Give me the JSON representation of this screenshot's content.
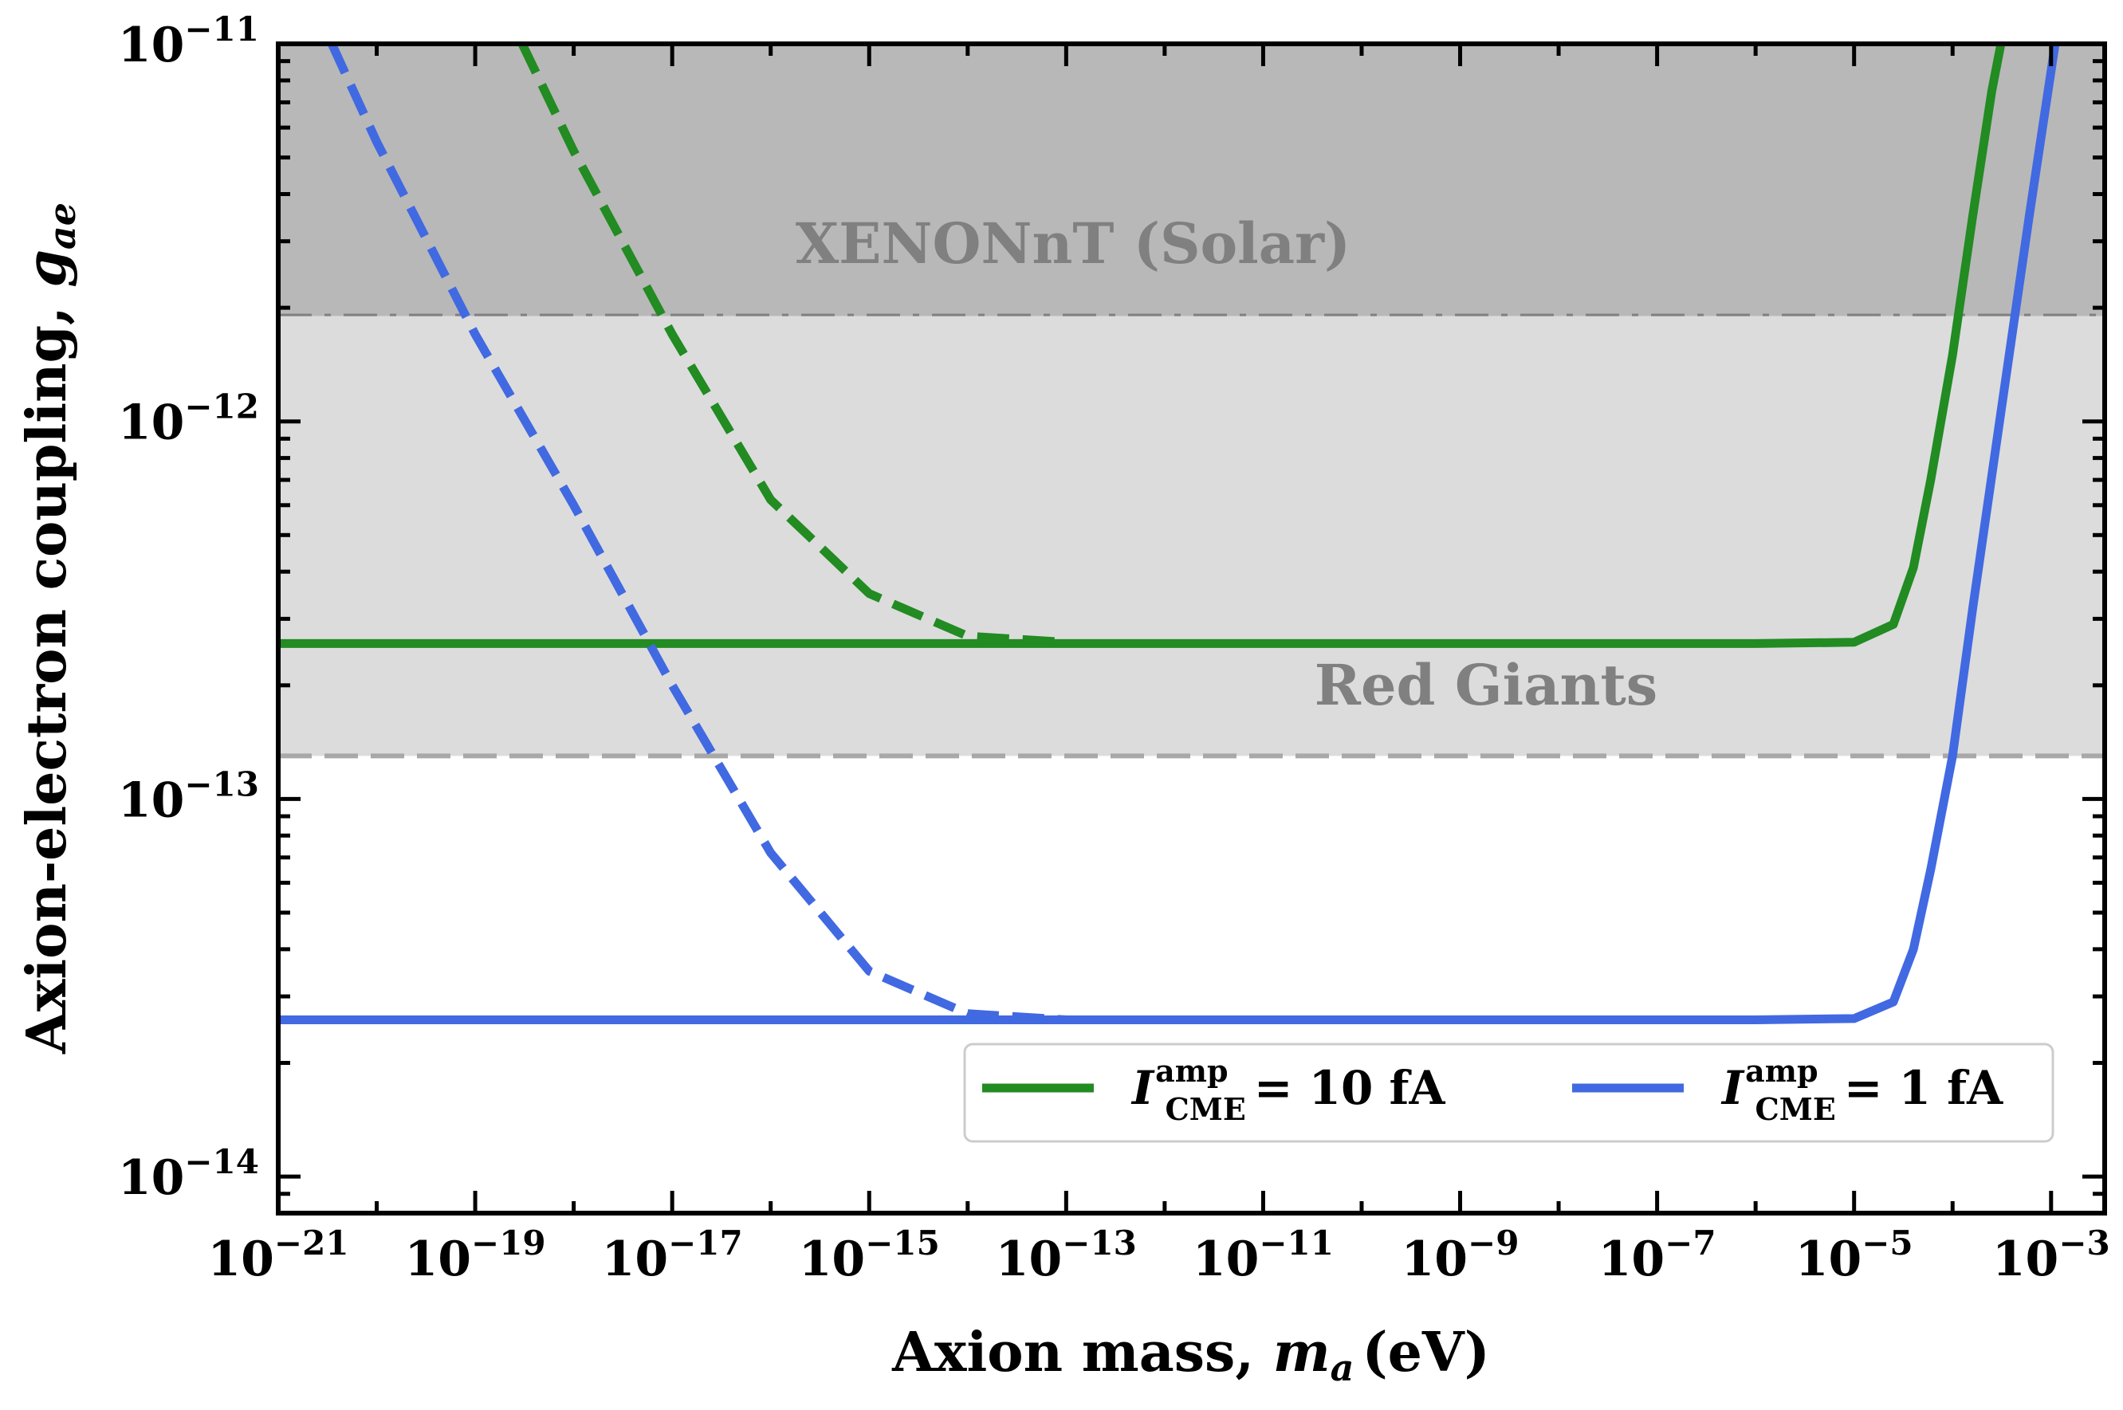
{
  "chart_data": {
    "type": "line",
    "title": "",
    "xlabel": "Axion mass, ",
    "xlabel_var": "m",
    "xlabel_sub": "a",
    "xlabel_unit": "(eV)",
    "ylabel": "Axion-electron coupling, ",
    "ylabel_var": "g",
    "ylabel_sub": "ae",
    "xscale": "log",
    "yscale": "log",
    "xlim": [
      1e-21,
      0.0035
    ],
    "ylim": [
      8e-15,
      1e-11
    ],
    "x_ticks": [
      {
        "exp": -21,
        "label": "−21"
      },
      {
        "exp": -19,
        "label": "−19"
      },
      {
        "exp": -17,
        "label": "−17"
      },
      {
        "exp": -15,
        "label": "−15"
      },
      {
        "exp": -13,
        "label": "−13"
      },
      {
        "exp": -11,
        "label": "−11"
      },
      {
        "exp": -9,
        "label": "−9"
      },
      {
        "exp": -7,
        "label": "−7"
      },
      {
        "exp": -5,
        "label": "−5"
      },
      {
        "exp": -3,
        "label": "−3"
      }
    ],
    "y_ticks": [
      {
        "exp": -11,
        "label": "−11"
      },
      {
        "exp": -12,
        "label": "−12"
      },
      {
        "exp": -13,
        "label": "−13"
      },
      {
        "exp": -14,
        "label": "−14"
      }
    ],
    "tick_base": "10",
    "regions": [
      {
        "name": "XENONnT (Solar)",
        "y_lower": 1.9e-12,
        "y_upper": 1e-11,
        "color": "#b8b8b8",
        "edge_style": "dashdot",
        "edge_color": "#808080"
      },
      {
        "name": "Red Giants",
        "y_lower": 1.3e-13,
        "y_upper": 1.9e-12,
        "color": "#dcdcdc",
        "edge_style": "dashed",
        "edge_color": "#a8a8a8"
      }
    ],
    "series": [
      {
        "name_var": "I",
        "name_sup": "amp",
        "name_sub": "CME",
        "name_value": "= 10 fA",
        "color": "#228b22",
        "dashed_points": [
          [
            3e-19,
            1e-11
          ],
          [
            1e-18,
            5.2e-12
          ],
          [
            1e-17,
            1.7e-12
          ],
          [
            1e-16,
            6.2e-13
          ],
          [
            1e-15,
            3.5e-13
          ],
          [
            1e-14,
            2.7e-13
          ],
          [
            1e-13,
            2.6e-13
          ]
        ],
        "solid_points": [
          [
            1e-21,
            2.58e-13
          ],
          [
            1e-06,
            2.58e-13
          ],
          [
            1e-05,
            2.6e-13
          ],
          [
            2.5e-05,
            2.9e-13
          ],
          [
            4e-05,
            4.1e-13
          ],
          [
            6e-05,
            7e-13
          ],
          [
            0.0001,
            1.5e-12
          ],
          [
            0.00016,
            3.5e-12
          ],
          [
            0.00025,
            7.5e-12
          ],
          [
            0.00031,
            1e-11
          ]
        ]
      },
      {
        "name_var": "I",
        "name_sup": "amp",
        "name_sub": "CME",
        "name_value": "= 1 fA",
        "color": "#4169e1",
        "dashed_points": [
          [
            3.5e-21,
            1e-11
          ],
          [
            1e-20,
            5.5e-12
          ],
          [
            1e-19,
            1.7e-12
          ],
          [
            1e-18,
            6e-13
          ],
          [
            1e-17,
            2e-13
          ],
          [
            1e-16,
            7.2e-14
          ],
          [
            1e-15,
            3.5e-14
          ],
          [
            1e-14,
            2.7e-14
          ],
          [
            1e-13,
            2.6e-14
          ]
        ],
        "solid_points": [
          [
            1e-21,
            2.6e-14
          ],
          [
            1e-06,
            2.6e-14
          ],
          [
            1e-05,
            2.62e-14
          ],
          [
            2.5e-05,
            2.9e-14
          ],
          [
            4e-05,
            4e-14
          ],
          [
            6e-05,
            6.5e-14
          ],
          [
            0.0001,
            1.3e-13
          ],
          [
            0.00016,
            3.2e-13
          ],
          [
            0.0003,
            1e-12
          ],
          [
            0.0006,
            3.5e-12
          ],
          [
            0.0011,
            1e-11
          ]
        ]
      }
    ],
    "legend_placement": "lower-right",
    "grid": false
  }
}
